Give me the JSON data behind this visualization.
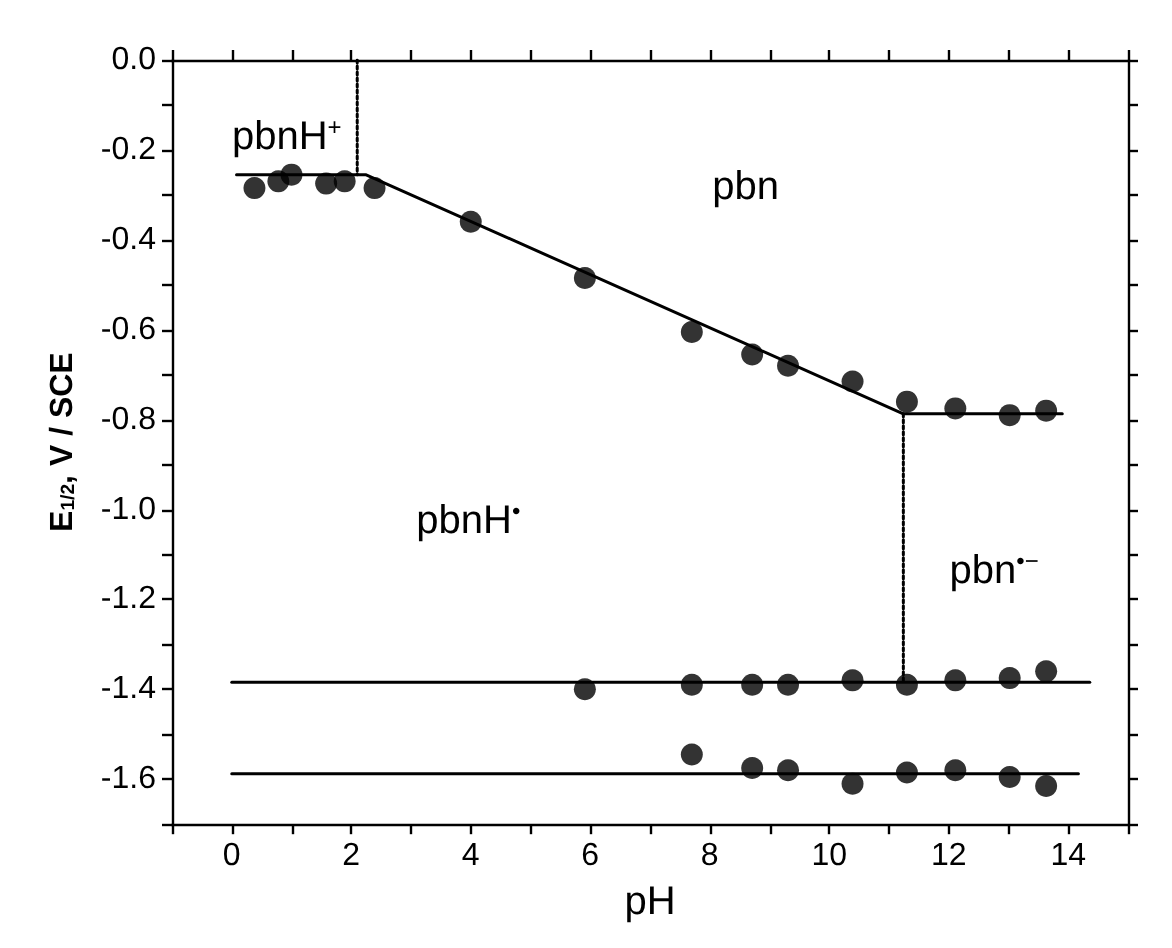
{
  "chart_data": {
    "type": "scatter",
    "xlabel": "pH",
    "ylabel": "E$_{1/2}$, V / SCE",
    "xlim": [
      -1,
      15
    ],
    "ylim": [
      -1.7,
      0
    ],
    "xticks": [
      {
        "value": -1,
        "label": null
      },
      0,
      {
        "value": 1,
        "label": null
      },
      2,
      {
        "value": 3,
        "label": null
      },
      4,
      {
        "value": 5,
        "label": null
      },
      6,
      {
        "value": 7,
        "label": null
      },
      8,
      {
        "value": 9,
        "label": null
      },
      10,
      {
        "value": 11,
        "label": null
      },
      12,
      {
        "value": 13,
        "label": null
      },
      14,
      {
        "value": 15,
        "label": null
      }
    ],
    "yticks": [
      {
        "value": 0,
        "label": "0.0"
      },
      {
        "value": -0.1,
        "label": null
      },
      -0.2,
      {
        "value": -0.3,
        "label": null
      },
      -0.4,
      {
        "value": -0.5,
        "label": null
      },
      -0.6,
      {
        "value": -0.7,
        "label": null
      },
      -0.8,
      {
        "value": -0.9,
        "label": null
      },
      {
        "value": -1,
        "label": "-1.0"
      },
      {
        "value": -1.1,
        "label": null
      },
      -1.2,
      {
        "value": -1.3,
        "label": null
      },
      -1.4,
      {
        "value": -1.5,
        "label": null
      },
      -1.6,
      {
        "value": -1.7,
        "label": null
      }
    ],
    "grid": false,
    "marker": "circle",
    "series": [
      {
        "color": "#000000",
        "x": [
          0.38,
          0.78,
          1.0,
          1.58,
          1.89,
          2.39,
          4.0,
          5.91,
          7.7,
          8.71,
          9.31,
          10.39,
          11.3,
          12.11,
          13.02,
          13.63
        ],
        "values": [
          -0.285,
          -0.27,
          -0.255,
          -0.275,
          -0.27,
          -0.285,
          -0.36,
          -0.485,
          -0.605,
          -0.655,
          -0.68,
          -0.715,
          -0.76,
          -0.775,
          -0.79,
          -0.78
        ]
      },
      {
        "color": "#000000",
        "x": [
          5.91,
          7.7,
          8.71,
          9.31,
          10.39,
          11.3,
          12.11,
          13.02,
          13.63
        ],
        "values": [
          -1.4,
          -1.39,
          -1.39,
          -1.39,
          -1.38,
          -1.39,
          -1.38,
          -1.375,
          -1.36
        ]
      },
      {
        "color": "#000000",
        "x": [
          7.7,
          8.71,
          9.31,
          10.39,
          11.3,
          12.11,
          13.02,
          13.63
        ],
        "values": [
          -1.545,
          -1.575,
          -1.58,
          -1.61,
          -1.585,
          -1.58,
          -1.595,
          -1.615
        ]
      },
      {
        "type": "line",
        "color": "#000000",
        "marker": "none",
        "line_style": "solid",
        "x": [
          0.08,
          2.24,
          11.24,
          13.9
        ],
        "values": [
          -0.255,
          -0.255,
          -0.787,
          -0.787
        ]
      },
      {
        "type": "line",
        "color": "#000000",
        "marker": "none",
        "line_style": "solid",
        "x": [
          0,
          14.36
        ],
        "values": [
          -1.384,
          -1.384
        ]
      },
      {
        "type": "line",
        "color": "#000000",
        "marker": "none",
        "line_style": "solid",
        "x": [
          0,
          14.17
        ],
        "values": [
          -1.588,
          -1.588
        ]
      },
      {
        "type": "line",
        "color": "#000000",
        "marker": "none",
        "line_style": "dotted",
        "x": [
          2.1,
          2.1
        ],
        "values": [
          0,
          -0.255
        ]
      },
      {
        "type": "line",
        "color": "#000000",
        "marker": "none",
        "line_style": "dotted",
        "x": [
          11.24,
          11.24
        ],
        "values": [
          -0.787,
          -1.384
        ]
      }
    ],
    "annotations": [
      "pbnH$^{+}$",
      "pbn",
      "pbnH$^{•}$",
      "pbn$^{•−}$"
    ]
  }
}
